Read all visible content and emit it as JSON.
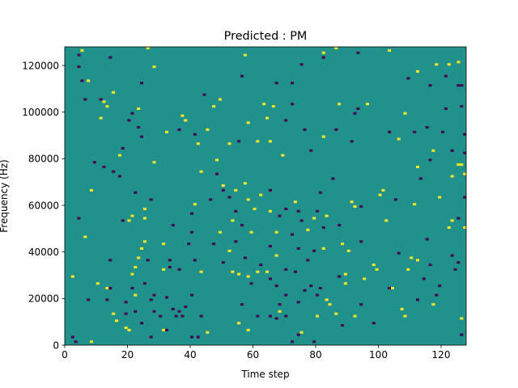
{
  "chart_data": {
    "type": "heatmap",
    "title": "Predicted : PM",
    "xlabel": "Time step",
    "ylabel": "Frequency (Hz)",
    "xlim": [
      0,
      128
    ],
    "ylim": [
      0,
      128000
    ],
    "xticks": [
      0,
      20,
      40,
      60,
      80,
      100,
      120
    ],
    "yticks": [
      0,
      20000,
      40000,
      60000,
      80000,
      100000,
      120000
    ],
    "grid": false,
    "legend": "none",
    "colormap": "viridis",
    "value_levels": [
      -1,
      0,
      1
    ],
    "background_value": 0,
    "level_colors": {
      "low": "#440154",
      "mid": "#21918c",
      "high": "#fde725"
    },
    "nonzero_cells": [
      [
        2,
        3,
        -1
      ],
      [
        2,
        29,
        1
      ],
      [
        3,
        1,
        -1
      ],
      [
        4,
        54,
        -1
      ],
      [
        4,
        119,
        -1
      ],
      [
        4,
        124,
        -1
      ],
      [
        5,
        113,
        -1
      ],
      [
        5,
        126,
        1
      ],
      [
        6,
        46,
        1
      ],
      [
        6,
        105,
        -1
      ],
      [
        7,
        19,
        -1
      ],
      [
        7,
        113,
        1
      ],
      [
        8,
        1,
        1
      ],
      [
        8,
        66,
        1
      ],
      [
        9,
        78,
        -1
      ],
      [
        10,
        26,
        1
      ],
      [
        11,
        97,
        1
      ],
      [
        11,
        105,
        -1
      ],
      [
        12,
        76,
        -1
      ],
      [
        12,
        104,
        1
      ],
      [
        13,
        19,
        -1
      ],
      [
        13,
        24,
        1
      ],
      [
        13,
        102,
        1
      ],
      [
        14,
        24,
        -1
      ],
      [
        14,
        36,
        -1
      ],
      [
        14,
        123,
        -1
      ],
      [
        15,
        13,
        1
      ],
      [
        15,
        74,
        -1
      ],
      [
        15,
        108,
        1
      ],
      [
        16,
        10,
        1
      ],
      [
        17,
        72,
        -1
      ],
      [
        17,
        81,
        1
      ],
      [
        18,
        53,
        -1
      ],
      [
        18,
        84,
        -1
      ],
      [
        19,
        7,
        1
      ],
      [
        19,
        13,
        -1
      ],
      [
        19,
        18,
        -1
      ],
      [
        20,
        6,
        1
      ],
      [
        20,
        53,
        1
      ],
      [
        20,
        96,
        -1
      ],
      [
        21,
        24,
        -1
      ],
      [
        21,
        30,
        1
      ],
      [
        21,
        55,
        1
      ],
      [
        21,
        99,
        -1
      ],
      [
        22,
        14,
        -1
      ],
      [
        22,
        21,
        1
      ],
      [
        22,
        33,
        1
      ],
      [
        22,
        65,
        -1
      ],
      [
        23,
        37,
        1
      ],
      [
        23,
        93,
        -1
      ],
      [
        23,
        101,
        1
      ],
      [
        24,
        9,
        -1
      ],
      [
        24,
        41,
        1
      ],
      [
        24,
        89,
        -1
      ],
      [
        24,
        112,
        -1
      ],
      [
        25,
        26,
        -1
      ],
      [
        25,
        44,
        1
      ],
      [
        25,
        54,
        1
      ],
      [
        25,
        58,
        1
      ],
      [
        26,
        36,
        -1
      ],
      [
        26,
        127,
        1
      ],
      [
        27,
        3,
        -1
      ],
      [
        27,
        19,
        -1
      ],
      [
        27,
        62,
        -1
      ],
      [
        28,
        14,
        -1
      ],
      [
        28,
        21,
        -1
      ],
      [
        28,
        78,
        1
      ],
      [
        28,
        119,
        1
      ],
      [
        30,
        12,
        -1
      ],
      [
        31,
        6,
        1
      ],
      [
        31,
        32,
        1
      ],
      [
        31,
        43,
        1
      ],
      [
        32,
        6,
        -1
      ],
      [
        32,
        20,
        -1
      ],
      [
        32,
        91,
        1
      ],
      [
        33,
        33,
        -1
      ],
      [
        33,
        36,
        -1
      ],
      [
        34,
        15,
        -1
      ],
      [
        34,
        51,
        -1
      ],
      [
        35,
        12,
        -1
      ],
      [
        36,
        14,
        -1
      ],
      [
        36,
        32,
        -1
      ],
      [
        36,
        92,
        -1
      ],
      [
        37,
        12,
        -1
      ],
      [
        37,
        98,
        1
      ],
      [
        38,
        16,
        -1
      ],
      [
        38,
        96,
        1
      ],
      [
        39,
        43,
        -1
      ],
      [
        40,
        3,
        -1
      ],
      [
        40,
        21,
        -1
      ],
      [
        40,
        48,
        -1
      ],
      [
        40,
        56,
        -1
      ],
      [
        41,
        36,
        -1
      ],
      [
        41,
        60,
        1
      ],
      [
        41,
        90,
        -1
      ],
      [
        42,
        3,
        -1
      ],
      [
        42,
        86,
        1
      ],
      [
        43,
        12,
        -1
      ],
      [
        43,
        31,
        1
      ],
      [
        43,
        74,
        1
      ],
      [
        44,
        107,
        -1
      ],
      [
        45,
        5,
        1
      ],
      [
        45,
        92,
        1
      ],
      [
        46,
        62,
        -1
      ],
      [
        47,
        43,
        -1
      ],
      [
        47,
        102,
        1
      ],
      [
        48,
        73,
        -1
      ],
      [
        48,
        79,
        1
      ],
      [
        49,
        48,
        1
      ],
      [
        49,
        105,
        1
      ],
      [
        50,
        35,
        -1
      ],
      [
        50,
        66,
        -1
      ],
      [
        50,
        68,
        1
      ],
      [
        52,
        40,
        1
      ],
      [
        52,
        63,
        -1
      ],
      [
        52,
        86,
        1
      ],
      [
        53,
        31,
        1
      ],
      [
        53,
        53,
        1
      ],
      [
        54,
        44,
        -1
      ],
      [
        54,
        57,
        -1
      ],
      [
        54,
        66,
        1
      ],
      [
        55,
        9,
        1
      ],
      [
        55,
        30,
        1
      ],
      [
        55,
        87,
        -1
      ],
      [
        56,
        17,
        -1
      ],
      [
        56,
        51,
        -1
      ],
      [
        56,
        115,
        -1
      ],
      [
        57,
        37,
        -1
      ],
      [
        57,
        69,
        1
      ],
      [
        57,
        124,
        1
      ],
      [
        58,
        6,
        1
      ],
      [
        58,
        29,
        1
      ],
      [
        58,
        62,
        1
      ],
      [
        58,
        95,
        1
      ],
      [
        59,
        26,
        -1
      ],
      [
        59,
        48,
        1
      ],
      [
        60,
        58,
        1
      ],
      [
        61,
        12,
        -1
      ],
      [
        61,
        31,
        1
      ],
      [
        61,
        87,
        1
      ],
      [
        62,
        34,
        -1
      ],
      [
        62,
        64,
        1
      ],
      [
        63,
        103,
        1
      ],
      [
        64,
        31,
        1
      ],
      [
        64,
        97,
        1
      ],
      [
        65,
        12,
        -1
      ],
      [
        65,
        28,
        -1
      ],
      [
        65,
        42,
        -1
      ],
      [
        65,
        57,
        1
      ],
      [
        65,
        66,
        -1
      ],
      [
        65,
        87,
        1
      ],
      [
        66,
        102,
        1
      ],
      [
        67,
        11,
        -1
      ],
      [
        67,
        25,
        -1
      ],
      [
        67,
        38,
        1
      ],
      [
        67,
        48,
        1
      ],
      [
        67,
        112,
        -1
      ],
      [
        68,
        14,
        1
      ],
      [
        68,
        17,
        -1
      ],
      [
        68,
        55,
        -1
      ],
      [
        69,
        81,
        1
      ],
      [
        70,
        12,
        -1
      ],
      [
        70,
        21,
        -1
      ],
      [
        70,
        32,
        -1
      ],
      [
        70,
        58,
        -1
      ],
      [
        70,
        96,
        -1
      ],
      [
        72,
        1,
        -1
      ],
      [
        72,
        47,
        -1
      ],
      [
        72,
        103,
        -1
      ],
      [
        72,
        112,
        -1
      ],
      [
        73,
        31,
        -1
      ],
      [
        73,
        61,
        1
      ],
      [
        74,
        4,
        -1
      ],
      [
        74,
        18,
        -1
      ],
      [
        74,
        41,
        -1
      ],
      [
        74,
        57,
        -1
      ],
      [
        75,
        5,
        1
      ],
      [
        75,
        53,
        -1
      ],
      [
        75,
        120,
        -1
      ],
      [
        76,
        23,
        -1
      ],
      [
        76,
        92,
        -1
      ],
      [
        77,
        36,
        -1
      ],
      [
        77,
        49,
        1
      ],
      [
        78,
        25,
        -1
      ],
      [
        78,
        83,
        -1
      ],
      [
        79,
        1,
        -1
      ],
      [
        79,
        40,
        -1
      ],
      [
        79,
        54,
        1
      ],
      [
        80,
        12,
        1
      ],
      [
        80,
        21,
        -1
      ],
      [
        80,
        57,
        -1
      ],
      [
        81,
        24,
        -1
      ],
      [
        81,
        65,
        -1
      ],
      [
        82,
        41,
        1
      ],
      [
        82,
        50,
        -1
      ],
      [
        82,
        89,
        1
      ],
      [
        82,
        123,
        -1
      ],
      [
        82,
        125,
        1
      ],
      [
        83,
        19,
        1
      ],
      [
        83,
        55,
        1
      ],
      [
        84,
        17,
        1
      ],
      [
        85,
        71,
        -1
      ],
      [
        86,
        13,
        1
      ],
      [
        86,
        92,
        -1
      ],
      [
        86,
        127,
        1
      ],
      [
        87,
        29,
        -1
      ],
      [
        87,
        51,
        -1
      ],
      [
        87,
        103,
        1
      ],
      [
        88,
        8,
        -1
      ],
      [
        88,
        43,
        1
      ],
      [
        89,
        26,
        1
      ],
      [
        89,
        30,
        1
      ],
      [
        90,
        40,
        1
      ],
      [
        91,
        61,
        1
      ],
      [
        91,
        87,
        -1
      ],
      [
        92,
        12,
        1
      ],
      [
        92,
        59,
        1
      ],
      [
        92,
        99,
        -1
      ],
      [
        93,
        101,
        -1
      ],
      [
        93,
        125,
        -1
      ],
      [
        94,
        17,
        -1
      ],
      [
        94,
        44,
        -1
      ],
      [
        94,
        59,
        -1
      ],
      [
        95,
        28,
        1
      ],
      [
        96,
        103,
        1
      ],
      [
        98,
        9,
        -1
      ],
      [
        98,
        34,
        1
      ],
      [
        99,
        32,
        1
      ],
      [
        100,
        64,
        1
      ],
      [
        101,
        66,
        1
      ],
      [
        102,
        53,
        1
      ],
      [
        103,
        24,
        -1
      ],
      [
        103,
        91,
        -1
      ],
      [
        103,
        126,
        1
      ],
      [
        104,
        24,
        1
      ],
      [
        105,
        62,
        -1
      ],
      [
        106,
        39,
        -1
      ],
      [
        106,
        88,
        1
      ],
      [
        107,
        15,
        1
      ],
      [
        108,
        12,
        1
      ],
      [
        108,
        99,
        1
      ],
      [
        109,
        32,
        1
      ],
      [
        109,
        114,
        -1
      ],
      [
        110,
        37,
        1
      ],
      [
        111,
        60,
        1
      ],
      [
        111,
        91,
        -1
      ],
      [
        112,
        19,
        -1
      ],
      [
        112,
        36,
        1
      ],
      [
        112,
        76,
        1
      ],
      [
        112,
        117,
        1
      ],
      [
        113,
        71,
        -1
      ],
      [
        114,
        28,
        -1
      ],
      [
        115,
        45,
        -1
      ],
      [
        115,
        93,
        -1
      ],
      [
        116,
        34,
        -1
      ],
      [
        116,
        79,
        -1
      ],
      [
        116,
        111,
        -1
      ],
      [
        117,
        17,
        1
      ],
      [
        117,
        83,
        1
      ],
      [
        118,
        21,
        -1
      ],
      [
        118,
        120,
        1
      ],
      [
        119,
        25,
        -1
      ],
      [
        119,
        63,
        1
      ],
      [
        120,
        91,
        -1
      ],
      [
        121,
        101,
        -1
      ],
      [
        121,
        115,
        -1
      ],
      [
        122,
        50,
        1
      ],
      [
        122,
        120,
        1
      ],
      [
        123,
        38,
        -1
      ],
      [
        123,
        53,
        1
      ],
      [
        123,
        72,
        1
      ],
      [
        123,
        83,
        -1
      ],
      [
        124,
        32,
        -1
      ],
      [
        125,
        35,
        -1
      ],
      [
        125,
        54,
        -1
      ],
      [
        125,
        77,
        1
      ],
      [
        125,
        111,
        -1
      ],
      [
        125,
        121,
        1
      ],
      [
        126,
        4,
        -1
      ],
      [
        126,
        11,
        1
      ],
      [
        126,
        77,
        1
      ],
      [
        126,
        102,
        -1
      ],
      [
        126,
        111,
        -1
      ],
      [
        127,
        50,
        1
      ],
      [
        127,
        63,
        -1
      ],
      [
        127,
        73,
        1
      ],
      [
        127,
        82,
        -1
      ],
      [
        127,
        90,
        -1
      ]
    ]
  }
}
